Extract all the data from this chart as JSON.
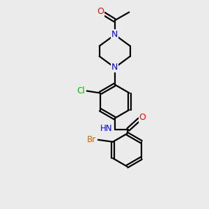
{
  "background_color": "#ebebeb",
  "bond_color": "#000000",
  "atom_colors": {
    "O": "#ff0000",
    "N": "#0000ff",
    "Cl": "#00bb00",
    "Br": "#cc6600",
    "C": "#000000",
    "H": "#444444"
  },
  "figsize": [
    3.0,
    3.0
  ],
  "dpi": 100
}
